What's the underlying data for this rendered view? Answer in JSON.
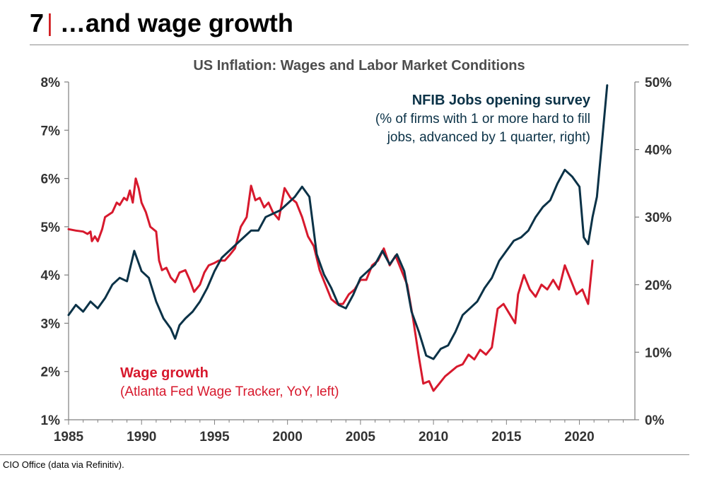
{
  "header": {
    "number": "7",
    "separator": "|",
    "title": "…and wage growth"
  },
  "footer": {
    "source": "CIO Office (data via Refinitiv)."
  },
  "colors": {
    "wages": "#d7192d",
    "nfib": "#0b3247",
    "separator": "#d01c1f"
  },
  "chart_data": {
    "type": "line",
    "title": "US Inflation: Wages and Labor Market Conditions",
    "x_ticks": [
      "1985",
      "1990",
      "1995",
      "2000",
      "2005",
      "2010",
      "2015",
      "2020"
    ],
    "xlim": [
      1985,
      2023.8
    ],
    "y_left": {
      "ticks": [
        "1%",
        "2%",
        "3%",
        "4%",
        "5%",
        "6%",
        "7%",
        "8%"
      ],
      "lim": [
        1,
        8
      ]
    },
    "y_right": {
      "ticks": [
        "0%",
        "10%",
        "20%",
        "30%",
        "40%",
        "50%"
      ],
      "lim": [
        0,
        50
      ]
    },
    "grid": false,
    "series": [
      {
        "id": "wages",
        "name": "Wage growth",
        "axis": "left",
        "label_line1": "Wage growth",
        "label_line2": "(Atlanta Fed Wage Tracker, YoY, left)",
        "points": [
          [
            1985.0,
            4.95
          ],
          [
            1985.5,
            4.92
          ],
          [
            1986.0,
            4.9
          ],
          [
            1986.3,
            4.85
          ],
          [
            1986.5,
            4.9
          ],
          [
            1986.6,
            4.7
          ],
          [
            1986.8,
            4.8
          ],
          [
            1987.0,
            4.7
          ],
          [
            1987.3,
            4.95
          ],
          [
            1987.5,
            5.2
          ],
          [
            1988.0,
            5.3
          ],
          [
            1988.3,
            5.5
          ],
          [
            1988.5,
            5.45
          ],
          [
            1988.8,
            5.6
          ],
          [
            1989.0,
            5.55
          ],
          [
            1989.2,
            5.75
          ],
          [
            1989.4,
            5.5
          ],
          [
            1989.6,
            6.0
          ],
          [
            1989.8,
            5.8
          ],
          [
            1990.0,
            5.5
          ],
          [
            1990.3,
            5.3
          ],
          [
            1990.6,
            5.0
          ],
          [
            1991.0,
            4.9
          ],
          [
            1991.2,
            4.3
          ],
          [
            1991.4,
            4.1
          ],
          [
            1991.7,
            4.15
          ],
          [
            1992.0,
            3.95
          ],
          [
            1992.3,
            3.85
          ],
          [
            1992.6,
            4.05
          ],
          [
            1993.0,
            4.1
          ],
          [
            1993.3,
            3.9
          ],
          [
            1993.6,
            3.65
          ],
          [
            1994.0,
            3.8
          ],
          [
            1994.3,
            4.05
          ],
          [
            1994.6,
            4.2
          ],
          [
            1995.0,
            4.25
          ],
          [
            1995.3,
            4.3
          ],
          [
            1995.7,
            4.3
          ],
          [
            1996.0,
            4.4
          ],
          [
            1996.4,
            4.55
          ],
          [
            1996.8,
            5.0
          ],
          [
            1997.2,
            5.2
          ],
          [
            1997.5,
            5.85
          ],
          [
            1997.8,
            5.55
          ],
          [
            1998.1,
            5.6
          ],
          [
            1998.4,
            5.4
          ],
          [
            1998.7,
            5.5
          ],
          [
            1999.0,
            5.3
          ],
          [
            1999.4,
            5.15
          ],
          [
            1999.8,
            5.8
          ],
          [
            2000.2,
            5.6
          ],
          [
            2000.6,
            5.5
          ],
          [
            2001.0,
            5.2
          ],
          [
            2001.4,
            4.8
          ],
          [
            2001.8,
            4.6
          ],
          [
            2002.2,
            4.1
          ],
          [
            2002.6,
            3.8
          ],
          [
            2003.0,
            3.5
          ],
          [
            2003.4,
            3.4
          ],
          [
            2003.8,
            3.4
          ],
          [
            2004.2,
            3.6
          ],
          [
            2004.6,
            3.7
          ],
          [
            2005.0,
            3.9
          ],
          [
            2005.4,
            3.9
          ],
          [
            2005.8,
            4.2
          ],
          [
            2006.2,
            4.3
          ],
          [
            2006.6,
            4.55
          ],
          [
            2007.0,
            4.2
          ],
          [
            2007.4,
            4.4
          ],
          [
            2007.8,
            4.1
          ],
          [
            2008.2,
            3.8
          ],
          [
            2008.6,
            3.1
          ],
          [
            2009.0,
            2.3
          ],
          [
            2009.3,
            1.75
          ],
          [
            2009.7,
            1.8
          ],
          [
            2010.0,
            1.6
          ],
          [
            2010.4,
            1.75
          ],
          [
            2010.8,
            1.9
          ],
          [
            2011.2,
            2.0
          ],
          [
            2011.6,
            2.1
          ],
          [
            2012.0,
            2.15
          ],
          [
            2012.4,
            2.35
          ],
          [
            2012.8,
            2.25
          ],
          [
            2013.2,
            2.45
          ],
          [
            2013.6,
            2.35
          ],
          [
            2014.0,
            2.5
          ],
          [
            2014.4,
            3.3
          ],
          [
            2014.8,
            3.4
          ],
          [
            2015.2,
            3.2
          ],
          [
            2015.6,
            3.0
          ],
          [
            2015.8,
            3.6
          ],
          [
            2016.2,
            4.0
          ],
          [
            2016.6,
            3.7
          ],
          [
            2017.0,
            3.55
          ],
          [
            2017.4,
            3.8
          ],
          [
            2017.8,
            3.7
          ],
          [
            2018.2,
            3.9
          ],
          [
            2018.6,
            3.7
          ],
          [
            2019.0,
            4.2
          ],
          [
            2019.4,
            3.9
          ],
          [
            2019.8,
            3.6
          ],
          [
            2020.2,
            3.7
          ],
          [
            2020.6,
            3.4
          ],
          [
            2020.9,
            4.3
          ]
        ]
      },
      {
        "id": "nfib",
        "name": "NFIB Jobs opening survey",
        "axis": "right",
        "label_line1": "NFIB Jobs opening survey",
        "label_line2": "(% of firms with 1 or more hard to fill",
        "label_line3": "jobs, advanced by 1 quarter, right)",
        "points": [
          [
            1985.0,
            15.5
          ],
          [
            1985.5,
            17.0
          ],
          [
            1986.0,
            16.0
          ],
          [
            1986.5,
            17.5
          ],
          [
            1987.0,
            16.5
          ],
          [
            1987.5,
            18.0
          ],
          [
            1988.0,
            20.0
          ],
          [
            1988.5,
            21.0
          ],
          [
            1989.0,
            20.5
          ],
          [
            1989.5,
            25.0
          ],
          [
            1990.0,
            22.0
          ],
          [
            1990.5,
            21.0
          ],
          [
            1991.0,
            17.5
          ],
          [
            1991.5,
            15.0
          ],
          [
            1992.0,
            13.5
          ],
          [
            1992.3,
            12.0
          ],
          [
            1992.6,
            14.0
          ],
          [
            1993.0,
            15.0
          ],
          [
            1993.5,
            16.0
          ],
          [
            1994.0,
            17.5
          ],
          [
            1994.5,
            19.5
          ],
          [
            1995.0,
            22.0
          ],
          [
            1995.5,
            24.0
          ],
          [
            1996.0,
            25.0
          ],
          [
            1996.5,
            26.0
          ],
          [
            1997.0,
            27.0
          ],
          [
            1997.5,
            28.0
          ],
          [
            1998.0,
            28.0
          ],
          [
            1998.5,
            30.0
          ],
          [
            1999.0,
            30.5
          ],
          [
            1999.5,
            31.0
          ],
          [
            2000.0,
            32.0
          ],
          [
            2000.5,
            33.0
          ],
          [
            2001.0,
            34.5
          ],
          [
            2001.5,
            33.0
          ],
          [
            2002.0,
            24.5
          ],
          [
            2002.5,
            21.5
          ],
          [
            2003.0,
            19.5
          ],
          [
            2003.5,
            17.0
          ],
          [
            2004.0,
            16.5
          ],
          [
            2004.5,
            18.5
          ],
          [
            2005.0,
            21.0
          ],
          [
            2005.5,
            22.0
          ],
          [
            2006.0,
            23.0
          ],
          [
            2006.5,
            25.0
          ],
          [
            2007.0,
            23.0
          ],
          [
            2007.5,
            24.5
          ],
          [
            2008.0,
            22.0
          ],
          [
            2008.5,
            16.0
          ],
          [
            2009.0,
            13.0
          ],
          [
            2009.5,
            9.5
          ],
          [
            2010.0,
            9.0
          ],
          [
            2010.5,
            10.5
          ],
          [
            2011.0,
            11.0
          ],
          [
            2011.5,
            13.0
          ],
          [
            2012.0,
            15.5
          ],
          [
            2012.5,
            16.5
          ],
          [
            2013.0,
            17.5
          ],
          [
            2013.5,
            19.5
          ],
          [
            2014.0,
            21.0
          ],
          [
            2014.5,
            23.5
          ],
          [
            2015.0,
            25.0
          ],
          [
            2015.5,
            26.5
          ],
          [
            2016.0,
            27.0
          ],
          [
            2016.5,
            28.0
          ],
          [
            2017.0,
            30.0
          ],
          [
            2017.5,
            31.5
          ],
          [
            2018.0,
            32.5
          ],
          [
            2018.5,
            35.0
          ],
          [
            2019.0,
            37.0
          ],
          [
            2019.5,
            36.0
          ],
          [
            2020.0,
            34.5
          ],
          [
            2020.3,
            27.0
          ],
          [
            2020.6,
            26.0
          ],
          [
            2020.9,
            30.0
          ],
          [
            2021.2,
            33.0
          ],
          [
            2021.5,
            40.0
          ],
          [
            2021.9,
            49.5
          ]
        ]
      }
    ]
  }
}
